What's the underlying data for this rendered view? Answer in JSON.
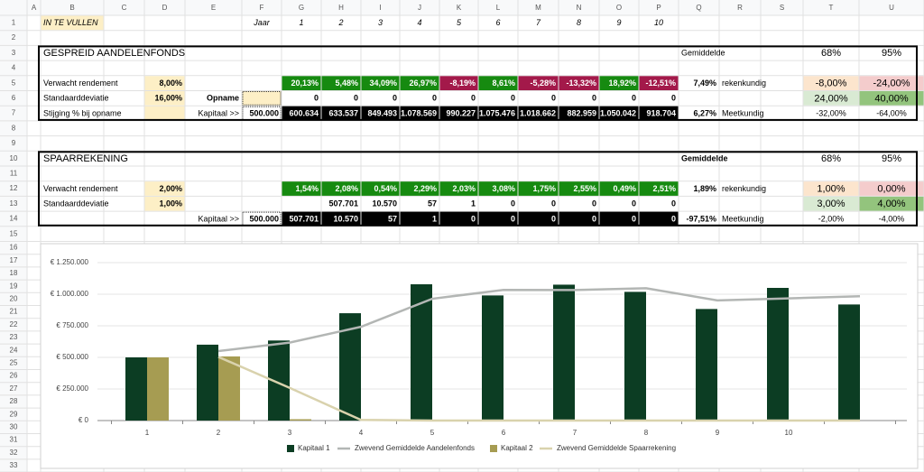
{
  "sheet": {
    "columns": [
      "A",
      "B",
      "C",
      "D",
      "E",
      "F",
      "G",
      "H",
      "I",
      "J",
      "K",
      "L",
      "M",
      "N",
      "O",
      "P",
      "Q",
      "R",
      "S",
      "T",
      "U"
    ],
    "row_numbers": [
      1,
      2,
      3,
      4,
      5,
      6,
      7,
      8,
      9,
      10,
      11,
      12,
      13,
      14,
      15,
      16,
      17,
      18,
      19,
      20,
      21,
      22,
      23,
      24,
      25,
      26,
      27,
      28,
      29,
      30,
      31,
      32,
      33
    ],
    "cells": [
      {
        "ref": "B1",
        "text": "IN TE VULLEN",
        "fill": "#fdefc6"
      },
      {
        "ref": "F1",
        "text": "Jaar"
      },
      {
        "ref": "G1",
        "text": "1"
      },
      {
        "ref": "H1",
        "text": "2"
      },
      {
        "ref": "I1",
        "text": "3"
      },
      {
        "ref": "J1",
        "text": "4"
      },
      {
        "ref": "K1",
        "text": "5"
      },
      {
        "ref": "L1",
        "text": "6"
      },
      {
        "ref": "M1",
        "text": "7"
      },
      {
        "ref": "N1",
        "text": "8"
      },
      {
        "ref": "O1",
        "text": "9"
      },
      {
        "ref": "P1",
        "text": "10"
      },
      {
        "ref": "B3",
        "text": "GESPREID AANDELENFONDS"
      },
      {
        "ref": "Q3",
        "text": "Gemiddelde"
      },
      {
        "ref": "T3",
        "text": "68%"
      },
      {
        "ref": "U3",
        "text": "95%"
      },
      {
        "ref": "B5",
        "text": "Verwacht rendement"
      },
      {
        "ref": "D5",
        "text": "8,00%",
        "fill": "#fdefc6"
      },
      {
        "ref": "G5",
        "text": "20,13%",
        "fill": "#168a10",
        "color": "#ffffff"
      },
      {
        "ref": "H5",
        "text": "5,48%",
        "fill": "#168a10",
        "color": "#ffffff"
      },
      {
        "ref": "I5",
        "text": "34,09%",
        "fill": "#168a10",
        "color": "#ffffff"
      },
      {
        "ref": "J5",
        "text": "26,97%",
        "fill": "#168a10",
        "color": "#ffffff"
      },
      {
        "ref": "K5",
        "text": "-8,19%",
        "fill": "#a3194a",
        "color": "#ffffff"
      },
      {
        "ref": "L5",
        "text": "8,61%",
        "fill": "#168a10",
        "color": "#ffffff"
      },
      {
        "ref": "M5",
        "text": "-5,28%",
        "fill": "#a3194a",
        "color": "#ffffff"
      },
      {
        "ref": "N5",
        "text": "-13,32%",
        "fill": "#a3194a",
        "color": "#ffffff"
      },
      {
        "ref": "O5",
        "text": "18,92%",
        "fill": "#168a10",
        "color": "#ffffff"
      },
      {
        "ref": "P5",
        "text": "-12,51%",
        "fill": "#a3194a",
        "color": "#ffffff"
      },
      {
        "ref": "Q5",
        "text": "7,49%"
      },
      {
        "ref": "R5",
        "text": "rekenkundig"
      },
      {
        "ref": "T5",
        "text": "-8,00%",
        "fill": "#fce5cd"
      },
      {
        "ref": "U5",
        "text": "-24,00%",
        "fill": "#f4cccc"
      },
      {
        "ref": "B6",
        "text": "Standaarddeviatie"
      },
      {
        "ref": "D6",
        "text": "16,00%",
        "fill": "#fdefc6"
      },
      {
        "ref": "E6",
        "text": "Opname"
      },
      {
        "ref": "F6",
        "fill": "#fdefc6"
      },
      {
        "ref": "G6",
        "text": "0"
      },
      {
        "ref": "H6",
        "text": "0"
      },
      {
        "ref": "I6",
        "text": "0"
      },
      {
        "ref": "J6",
        "text": "0"
      },
      {
        "ref": "K6",
        "text": "0"
      },
      {
        "ref": "L6",
        "text": "0"
      },
      {
        "ref": "M6",
        "text": "0"
      },
      {
        "ref": "N6",
        "text": "0"
      },
      {
        "ref": "O6",
        "text": "0"
      },
      {
        "ref": "P6",
        "text": "0"
      },
      {
        "ref": "T6",
        "text": "24,00%",
        "fill": "#d9ead3"
      },
      {
        "ref": "U6",
        "text": "40,00%",
        "fill": "#93c47d"
      },
      {
        "ref": "B7",
        "text": "Stijging % bij opname"
      },
      {
        "ref": "D7",
        "fill": "#fdefc6"
      },
      {
        "ref": "E7",
        "text": "Kapitaal >>"
      },
      {
        "ref": "F7",
        "text": "500.000"
      },
      {
        "ref": "G7",
        "text": "600.634",
        "fill": "#000000",
        "color": "#ffffff"
      },
      {
        "ref": "H7",
        "text": "633.537",
        "fill": "#000000",
        "color": "#ffffff"
      },
      {
        "ref": "I7",
        "text": "849.493",
        "fill": "#000000",
        "color": "#ffffff"
      },
      {
        "ref": "J7",
        "text": "1.078.569",
        "fill": "#000000",
        "color": "#ffffff"
      },
      {
        "ref": "K7",
        "text": "990.227",
        "fill": "#000000",
        "color": "#ffffff"
      },
      {
        "ref": "L7",
        "text": "1.075.476",
        "fill": "#000000",
        "color": "#ffffff"
      },
      {
        "ref": "M7",
        "text": "1.018.662",
        "fill": "#000000",
        "color": "#ffffff"
      },
      {
        "ref": "N7",
        "text": "882.959",
        "fill": "#000000",
        "color": "#ffffff"
      },
      {
        "ref": "O7",
        "text": "1.050.042",
        "fill": "#000000",
        "color": "#ffffff"
      },
      {
        "ref": "P7",
        "text": "918.704",
        "fill": "#000000",
        "color": "#ffffff"
      },
      {
        "ref": "Q7",
        "text": "6,27%"
      },
      {
        "ref": "R7",
        "text": "Meetkundig"
      },
      {
        "ref": "T7",
        "text": "-32,00%"
      },
      {
        "ref": "U7",
        "text": "-64,00%"
      },
      {
        "ref": "B10",
        "text": "SPAARREKENING"
      },
      {
        "ref": "Q10",
        "text": "Gemiddelde"
      },
      {
        "ref": "T10",
        "text": "68%"
      },
      {
        "ref": "U10",
        "text": "95%"
      },
      {
        "ref": "B12",
        "text": "Verwacht rendement"
      },
      {
        "ref": "D12",
        "text": "2,00%",
        "fill": "#fdefc6"
      },
      {
        "ref": "G12",
        "text": "1,54%",
        "fill": "#168a10",
        "color": "#ffffff"
      },
      {
        "ref": "H12",
        "text": "2,08%",
        "fill": "#168a10",
        "color": "#ffffff"
      },
      {
        "ref": "I12",
        "text": "0,54%",
        "fill": "#168a10",
        "color": "#ffffff"
      },
      {
        "ref": "J12",
        "text": "2,29%",
        "fill": "#168a10",
        "color": "#ffffff"
      },
      {
        "ref": "K12",
        "text": "2,03%",
        "fill": "#168a10",
        "color": "#ffffff"
      },
      {
        "ref": "L12",
        "text": "3,08%",
        "fill": "#168a10",
        "color": "#ffffff"
      },
      {
        "ref": "M12",
        "text": "1,75%",
        "fill": "#168a10",
        "color": "#ffffff"
      },
      {
        "ref": "N12",
        "text": "2,55%",
        "fill": "#168a10",
        "color": "#ffffff"
      },
      {
        "ref": "O12",
        "text": "0,49%",
        "fill": "#168a10",
        "color": "#ffffff"
      },
      {
        "ref": "P12",
        "text": "2,51%",
        "fill": "#168a10",
        "color": "#ffffff"
      },
      {
        "ref": "Q12",
        "text": "1,89%"
      },
      {
        "ref": "R12",
        "text": "rekenkundig"
      },
      {
        "ref": "T12",
        "text": "1,00%",
        "fill": "#fce5cd"
      },
      {
        "ref": "U12",
        "text": "0,00%",
        "fill": "#f4cccc"
      },
      {
        "ref": "B13",
        "text": "Standaarddeviatie"
      },
      {
        "ref": "D13",
        "text": "1,00%",
        "fill": "#fdefc6"
      },
      {
        "ref": "H13",
        "text": "507.701"
      },
      {
        "ref": "I13",
        "text": "10.570"
      },
      {
        "ref": "J13",
        "text": "57"
      },
      {
        "ref": "K13",
        "text": "1"
      },
      {
        "ref": "L13",
        "text": "0"
      },
      {
        "ref": "M13",
        "text": "0"
      },
      {
        "ref": "N13",
        "text": "0"
      },
      {
        "ref": "O13",
        "text": "0"
      },
      {
        "ref": "P13",
        "text": "0"
      },
      {
        "ref": "T13",
        "text": "3,00%",
        "fill": "#d9ead3"
      },
      {
        "ref": "U13",
        "text": "4,00%",
        "fill": "#93c47d"
      },
      {
        "ref": "E14",
        "text": "Kapitaal >>"
      },
      {
        "ref": "F14",
        "text": "500.000"
      },
      {
        "ref": "G14",
        "text": "507.701",
        "fill": "#000000",
        "color": "#ffffff"
      },
      {
        "ref": "H14",
        "text": "10.570",
        "fill": "#000000",
        "color": "#ffffff"
      },
      {
        "ref": "I14",
        "text": "57",
        "fill": "#000000",
        "color": "#ffffff"
      },
      {
        "ref": "J14",
        "text": "1",
        "fill": "#000000",
        "color": "#ffffff"
      },
      {
        "ref": "K14",
        "text": "0",
        "fill": "#000000",
        "color": "#ffffff"
      },
      {
        "ref": "L14",
        "text": "0",
        "fill": "#000000",
        "color": "#ffffff"
      },
      {
        "ref": "M14",
        "text": "0",
        "fill": "#000000",
        "color": "#ffffff"
      },
      {
        "ref": "N14",
        "text": "0",
        "fill": "#000000",
        "color": "#ffffff"
      },
      {
        "ref": "O14",
        "text": "0",
        "fill": "#000000",
        "color": "#ffffff"
      },
      {
        "ref": "P14",
        "text": "0",
        "fill": "#000000",
        "color": "#ffffff"
      },
      {
        "ref": "Q14",
        "text": "-97,51%"
      },
      {
        "ref": "R14",
        "text": "Meetkundig"
      },
      {
        "ref": "T14",
        "text": "-2,00%"
      },
      {
        "ref": "U14",
        "text": "-4,00%"
      }
    ]
  },
  "chart_data": {
    "type": "bar",
    "categories": [
      1,
      2,
      3,
      4,
      5,
      6,
      7,
      8,
      9,
      10,
      null
    ],
    "series": [
      {
        "name": "Kapitaal 1",
        "type": "bar",
        "color": "#0c3d23",
        "values": [
          500000,
          600634,
          633537,
          849493,
          1078569,
          990227,
          1075476,
          1018662,
          882959,
          1050042,
          918704
        ]
      },
      {
        "name": "Zwevend Gemiddelde Aandelenfonds",
        "type": "line",
        "color": "#b3b6b4",
        "values": [
          null,
          550000,
          617000,
          742000,
          964000,
          1034000,
          1033000,
          1047000,
          951000,
          967000,
          984000
        ]
      },
      {
        "name": "Kapitaal 2",
        "type": "bar",
        "color": "#a69c52",
        "values": [
          500000,
          507701,
          10570,
          57,
          1,
          0,
          0,
          0,
          0,
          0,
          0
        ]
      },
      {
        "name": "Zwevend Gemiddelde Spaarrekening",
        "type": "line",
        "color": "#d9d2ad",
        "values": [
          null,
          504000,
          259000,
          5000,
          0,
          0,
          0,
          0,
          0,
          0,
          0
        ]
      }
    ],
    "ylim": [
      0,
      1250000
    ],
    "yticks": [
      {
        "value": 0,
        "label": "€ 0"
      },
      {
        "value": 250000,
        "label": "€ 250.000"
      },
      {
        "value": 500000,
        "label": "€ 500.000"
      },
      {
        "value": 750000,
        "label": "€ 750.000"
      },
      {
        "value": 1000000,
        "label": "€ 1.000.000"
      },
      {
        "value": 1250000,
        "label": "€ 1.250.000"
      }
    ],
    "grid": true,
    "legend": "bottom"
  }
}
